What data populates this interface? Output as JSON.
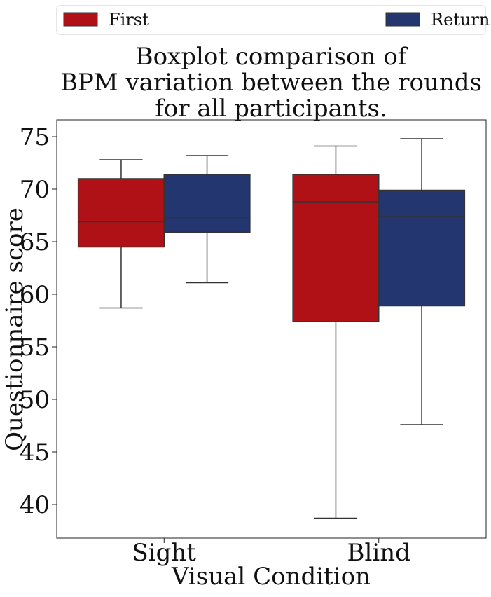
{
  "chart_data": {
    "type": "boxplot",
    "title_lines": [
      "Boxplot comparison of",
      "BPM variation between the rounds",
      "for all participants."
    ],
    "xlabel": "Visual Condition",
    "ylabel": "Questionnaire score",
    "ylim": [
      36.8,
      76.6
    ],
    "yticks": [
      40,
      45,
      50,
      55,
      60,
      65,
      70,
      75
    ],
    "categories": [
      "Sight",
      "Blind"
    ],
    "legend": {
      "placement": "top",
      "entries": [
        "First",
        "Return"
      ]
    },
    "grid": false,
    "series": [
      {
        "name": "First",
        "color": "#b01116",
        "boxes": [
          {
            "category": "Sight",
            "whisker_low": 58.7,
            "q1": 64.5,
            "median": 66.9,
            "q3": 71.0,
            "whisker_high": 72.8
          },
          {
            "category": "Blind",
            "whisker_low": 38.7,
            "q1": 57.4,
            "median": 68.8,
            "q3": 71.4,
            "whisker_high": 74.1
          }
        ]
      },
      {
        "name": "Return",
        "color": "#23366f",
        "boxes": [
          {
            "category": "Sight",
            "whisker_low": 61.1,
            "q1": 65.9,
            "median": 67.3,
            "q3": 71.4,
            "whisker_high": 73.2
          },
          {
            "category": "Blind",
            "whisker_low": 47.6,
            "q1": 58.9,
            "median": 67.4,
            "q3": 69.9,
            "whisker_high": 74.8
          }
        ]
      }
    ]
  }
}
